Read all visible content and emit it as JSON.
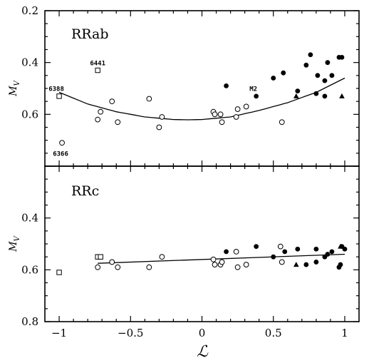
{
  "chart_data": [
    {
      "type": "scatter",
      "panel_label": "RRab",
      "ylabel_main": "M",
      "ylabel_sub": "V",
      "ylim": [
        0.2,
        0.8
      ],
      "yaxis_inverted": true,
      "xlim": [
        -1.1,
        1.1
      ],
      "yticks": [
        "0.2",
        "0.4",
        "0.6"
      ],
      "fit_curve": {
        "x": [
          -1.0,
          -0.8,
          -0.6,
          -0.4,
          -0.2,
          -0.1,
          0.0,
          0.2,
          0.4,
          0.6,
          0.8,
          1.0
        ],
        "y": [
          0.515,
          0.56,
          0.59,
          0.61,
          0.62,
          0.621,
          0.62,
          0.61,
          0.585,
          0.555,
          0.515,
          0.46
        ]
      },
      "series": [
        {
          "marker": "open-circle",
          "points": [
            [
              -0.98,
              0.71
            ],
            [
              -0.73,
              0.62
            ],
            [
              -0.71,
              0.59
            ],
            [
              -0.63,
              0.55
            ],
            [
              -0.59,
              0.63
            ],
            [
              -0.37,
              0.54
            ],
            [
              -0.3,
              0.65
            ],
            [
              -0.28,
              0.61
            ],
            [
              0.08,
              0.59
            ],
            [
              0.09,
              0.6
            ],
            [
              0.13,
              0.6
            ],
            [
              0.14,
              0.63
            ],
            [
              0.24,
              0.61
            ],
            [
              0.25,
              0.58
            ],
            [
              0.31,
              0.57
            ],
            [
              0.56,
              0.63
            ]
          ]
        },
        {
          "marker": "filled-circle",
          "points": [
            [
              0.17,
              0.49
            ],
            [
              0.38,
              0.53
            ],
            [
              0.5,
              0.46
            ],
            [
              0.57,
              0.44
            ],
            [
              0.67,
              0.51
            ],
            [
              0.73,
              0.41
            ],
            [
              0.76,
              0.37
            ],
            [
              0.8,
              0.52
            ],
            [
              0.81,
              0.45
            ],
            [
              0.86,
              0.47
            ],
            [
              0.86,
              0.53
            ],
            [
              0.88,
              0.4
            ],
            [
              0.91,
              0.45
            ],
            [
              0.96,
              0.38
            ],
            [
              0.98,
              0.38
            ]
          ]
        },
        {
          "marker": "open-square",
          "points": [
            [
              -0.73,
              0.43
            ],
            [
              -1.0,
              0.53
            ]
          ]
        },
        {
          "marker": "filled-triangle",
          "points": [
            [
              0.66,
              0.53
            ],
            [
              0.98,
              0.53
            ]
          ]
        }
      ],
      "annotations": [
        {
          "text": "6441",
          "x": -0.73,
          "y": 0.41
        },
        {
          "text": "6388",
          "x": -1.02,
          "y": 0.51
        },
        {
          "text": "6366",
          "x": -0.99,
          "y": 0.76
        },
        {
          "text": "M2",
          "x": 0.36,
          "y": 0.51
        }
      ]
    },
    {
      "type": "scatter",
      "panel_label": "RRc",
      "ylabel_main": "M",
      "ylabel_sub": "V",
      "ylim": [
        0.2,
        0.8
      ],
      "yaxis_inverted": true,
      "xlim": [
        -1.1,
        1.1
      ],
      "yticks": [
        "0.4",
        "0.6",
        "0.8"
      ],
      "xticks": [
        "−1",
        "−0.5",
        "0",
        "0.5",
        "1"
      ],
      "xtick_values": [
        -1,
        -0.5,
        0,
        0.5,
        1
      ],
      "xlabel": "ℒ",
      "fit_line": {
        "x": [
          -0.73,
          1.0
        ],
        "y": [
          0.575,
          0.54
        ]
      },
      "series": [
        {
          "marker": "open-circle",
          "points": [
            [
              -0.73,
              0.59
            ],
            [
              -0.63,
              0.57
            ],
            [
              -0.59,
              0.59
            ],
            [
              -0.37,
              0.59
            ],
            [
              -0.28,
              0.55
            ],
            [
              0.08,
              0.56
            ],
            [
              0.09,
              0.58
            ],
            [
              0.13,
              0.58
            ],
            [
              0.14,
              0.57
            ],
            [
              0.24,
              0.53
            ],
            [
              0.25,
              0.59
            ],
            [
              0.31,
              0.58
            ],
            [
              0.55,
              0.51
            ],
            [
              0.56,
              0.57
            ]
          ]
        },
        {
          "marker": "filled-circle",
          "points": [
            [
              0.17,
              0.53
            ],
            [
              0.38,
              0.51
            ],
            [
              0.5,
              0.55
            ],
            [
              0.58,
              0.53
            ],
            [
              0.67,
              0.52
            ],
            [
              0.73,
              0.58
            ],
            [
              0.8,
              0.57
            ],
            [
              0.8,
              0.52
            ],
            [
              0.86,
              0.55
            ],
            [
              0.88,
              0.54
            ],
            [
              0.91,
              0.53
            ],
            [
              0.96,
              0.59
            ],
            [
              0.97,
              0.58
            ],
            [
              0.98,
              0.51
            ],
            [
              1.0,
              0.52
            ]
          ]
        },
        {
          "marker": "open-square",
          "points": [
            [
              -0.73,
              0.55
            ],
            [
              -0.71,
              0.55
            ],
            [
              -1.0,
              0.61
            ]
          ]
        },
        {
          "marker": "filled-triangle",
          "points": [
            [
              0.66,
              0.58
            ],
            [
              0.97,
              0.51
            ]
          ]
        }
      ],
      "annotations": []
    }
  ]
}
